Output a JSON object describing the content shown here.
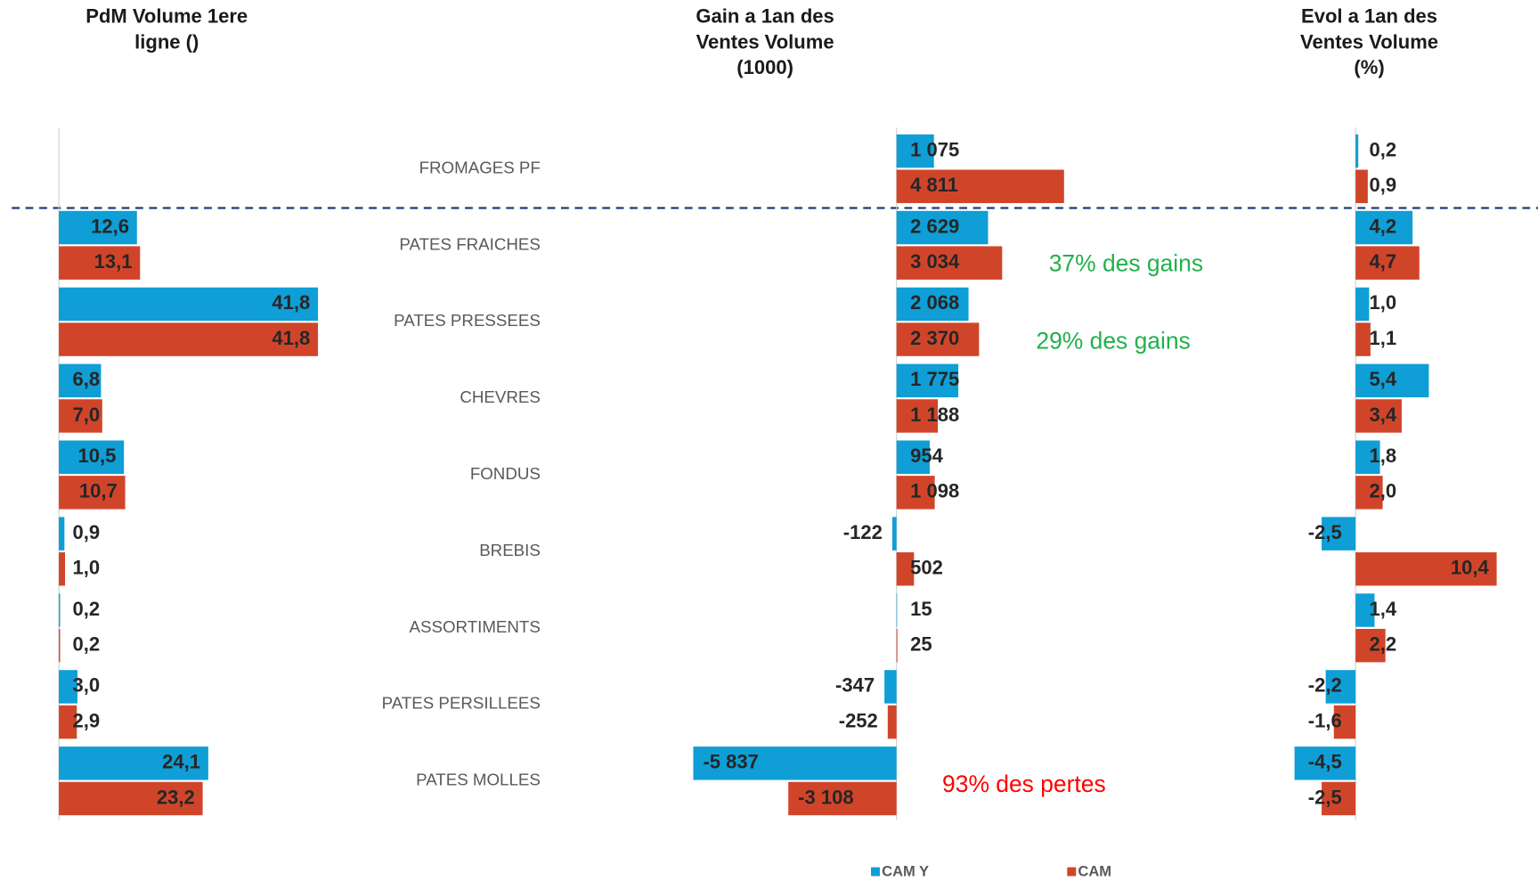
{
  "chart_data": [
    {
      "type": "hbar",
      "title": [
        "PdM Volume 1ere",
        "ligne ()"
      ],
      "categories": [
        "FROMAGES PF",
        "PATES FRAICHES",
        "PATES PRESSEES",
        "CHEVRES",
        "FONDUS",
        "BREBIS",
        "ASSORTIMENTS",
        "PATES PERSILLEES",
        "PATES MOLLES"
      ],
      "xlim": [
        0,
        50
      ],
      "series": [
        {
          "color": "#0f9ed5",
          "values": [
            null,
            12.6,
            41.8,
            6.8,
            10.5,
            0.9,
            0.2,
            3.0,
            24.1
          ],
          "value_labels": [
            null,
            "12,6",
            "41,8",
            "6,8",
            "10,5",
            "0,9",
            "0,2",
            "3,0",
            "24,1"
          ]
        },
        {
          "color": "#d0452a",
          "values": [
            null,
            13.1,
            41.8,
            7.0,
            10.7,
            1.0,
            0.2,
            2.9,
            23.2
          ],
          "value_labels": [
            null,
            "13,1",
            "41,8",
            "7,0",
            "10,7",
            "1,0",
            "0,2",
            "2,9",
            "23,2"
          ]
        }
      ]
    },
    {
      "type": "hbar",
      "title": [
        "Gain a 1an des",
        "Ventes Volume",
        "(1000)"
      ],
      "xlim": [
        -6000,
        6000
      ],
      "series": [
        {
          "name": "CAM Y",
          "color": "#0f9ed5",
          "values": [
            1075,
            2629,
            2068,
            1775,
            954,
            -122,
            15,
            -347,
            -5837
          ],
          "value_labels": [
            "1 075",
            "2 629",
            "2 068",
            "1 775",
            "954",
            "-122",
            "15",
            "-347",
            "-5 837"
          ]
        },
        {
          "name": "CAM",
          "color": "#d0452a",
          "values": [
            4811,
            3034,
            2370,
            1188,
            1098,
            502,
            25,
            -252,
            -3108
          ],
          "value_labels": [
            "4 811",
            "3 034",
            "2 370",
            "1 188",
            "1 098",
            "502",
            "25",
            "-252",
            "-3 108"
          ]
        }
      ],
      "annotations": [
        {
          "text": "37% des gains",
          "color": "#22b14c"
        },
        {
          "text": "29% des gains",
          "color": "#22b14c"
        },
        {
          "text": "93% des pertes",
          "color": "#ff0000"
        }
      ]
    },
    {
      "type": "hbar",
      "title": [
        "Evol a 1an des",
        "Ventes Volume",
        "(%)"
      ],
      "xlim": [
        -6,
        12
      ],
      "series": [
        {
          "color": "#0f9ed5",
          "values": [
            0.2,
            4.2,
            1.0,
            5.4,
            1.8,
            -2.5,
            1.4,
            -2.2,
            -4.5
          ],
          "value_labels": [
            "0,2",
            "4,2",
            "1,0",
            "5,4",
            "1,8",
            "-2,5",
            "1,4",
            "-2,2",
            "-4,5"
          ]
        },
        {
          "color": "#d0452a",
          "values": [
            0.9,
            4.7,
            1.1,
            3.4,
            2.0,
            10.4,
            2.2,
            -1.6,
            -2.5
          ],
          "value_labels": [
            "0,9",
            "4,7",
            "1,1",
            "3,4",
            "2,0",
            "10,4",
            "2,2",
            "-1,6",
            "-2,5"
          ]
        }
      ]
    }
  ]
}
